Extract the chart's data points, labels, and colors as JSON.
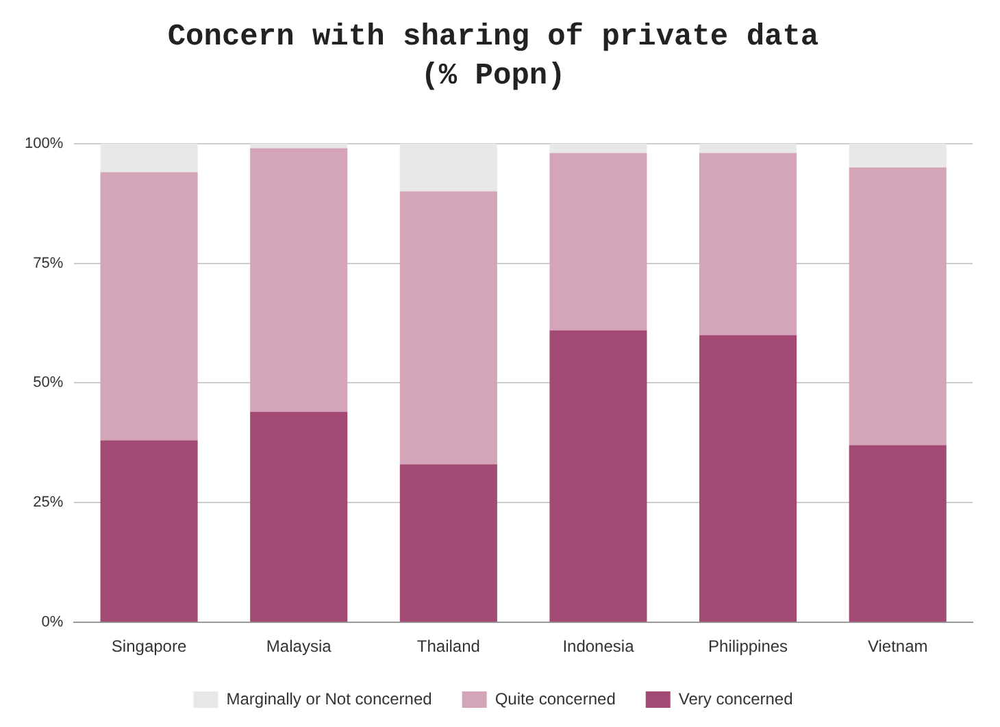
{
  "chart_data": {
    "type": "bar",
    "title": "Concern with sharing of private data",
    "subtitle": "(% Popn)",
    "stacked": true,
    "categories": [
      "Singapore",
      "Malaysia",
      "Thailand",
      "Indonesia",
      "Philippines",
      "Vietnam"
    ],
    "series": [
      {
        "name": "Very concerned",
        "color": "#a34a74",
        "values": [
          38,
          44,
          33,
          61,
          60,
          37
        ]
      },
      {
        "name": "Quite concerned",
        "color": "#d4a5b9",
        "values": [
          56,
          55,
          57,
          37,
          38,
          58
        ]
      },
      {
        "name": "Marginally or Not concerned",
        "color": "#e8e8e8",
        "values": [
          6,
          1,
          10,
          2,
          2,
          5
        ]
      }
    ],
    "ylim": [
      0,
      100
    ],
    "yticks": [
      {
        "value": 0,
        "label": "0%"
      },
      {
        "value": 25,
        "label": "25%"
      },
      {
        "value": 50,
        "label": "50%"
      },
      {
        "value": 75,
        "label": "75%"
      },
      {
        "value": 100,
        "label": "100%"
      }
    ],
    "grid": "y",
    "legend": "bottom"
  }
}
